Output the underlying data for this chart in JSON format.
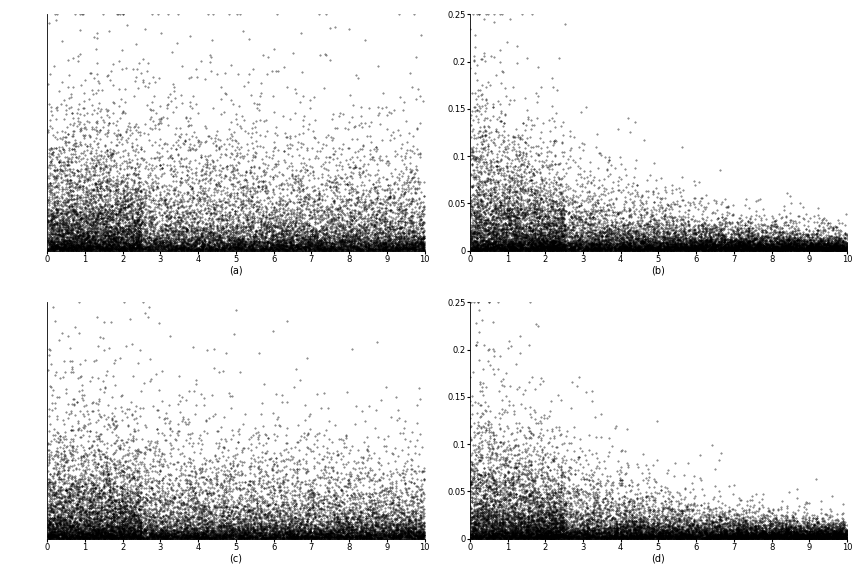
{
  "panels": [
    "a",
    "b",
    "c",
    "d"
  ],
  "n_points_main": 8000,
  "n_points_dense": 4000,
  "xlim": [
    0,
    10
  ],
  "ylim_ac": [
    0,
    0.5
  ],
  "ylim_bd": [
    0,
    0.25
  ],
  "xticks": [
    0,
    1,
    2,
    3,
    4,
    5,
    6,
    7,
    8,
    9,
    10
  ],
  "yticks_bd": [
    0,
    0.05,
    0.1,
    0.15,
    0.2,
    0.25
  ],
  "seeds": [
    42,
    123,
    77,
    200
  ],
  "marker_size": 0.8,
  "marker_color": "#000000",
  "background_color": "#ffffff",
  "label_fontsize": 7,
  "tick_fontsize": 6,
  "configs": [
    {
      "alpha": 0.04,
      "scale": 0.18,
      "base_scale": 0.008,
      "has_ylabels": false,
      "ylim": [
        0,
        0.5
      ]
    },
    {
      "alpha": 0.28,
      "scale": 0.22,
      "base_scale": 0.003,
      "has_ylabels": true,
      "ylim": [
        0,
        0.25
      ]
    },
    {
      "alpha": 0.06,
      "scale": 0.16,
      "base_scale": 0.007,
      "has_ylabels": false,
      "ylim": [
        0,
        0.5
      ]
    },
    {
      "alpha": 0.28,
      "scale": 0.2,
      "base_scale": 0.003,
      "has_ylabels": true,
      "ylim": [
        0,
        0.25
      ]
    }
  ]
}
